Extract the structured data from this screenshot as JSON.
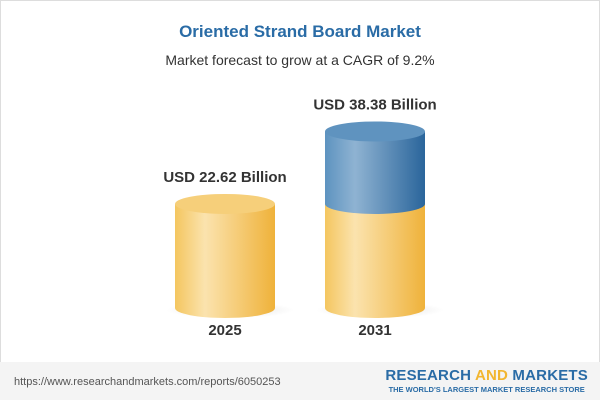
{
  "chart_data": {
    "type": "bar",
    "style": "3d-cylinder",
    "title": "Oriented Strand Board Market",
    "subtitle": "Market forecast to grow at a CAGR of 9.2%",
    "categories": [
      "2025",
      "2031"
    ],
    "values": [
      22.62,
      38.38
    ],
    "data_labels": [
      "USD 22.62 Billion",
      "USD 38.38 Billion"
    ],
    "unit": "USD Billion",
    "grid": false,
    "colors": {
      "base": "#f2c35e",
      "growth": "#3f7fb3",
      "title": "#2a6ca6"
    }
  },
  "footer": {
    "url": "https://www.researchandmarkets.com/reports/6050253",
    "logo_part1": "RESEARCH ",
    "logo_part2": "AND",
    "logo_part3": " MARKETS",
    "tagline": "THE WORLD'S LARGEST MARKET RESEARCH STORE"
  }
}
